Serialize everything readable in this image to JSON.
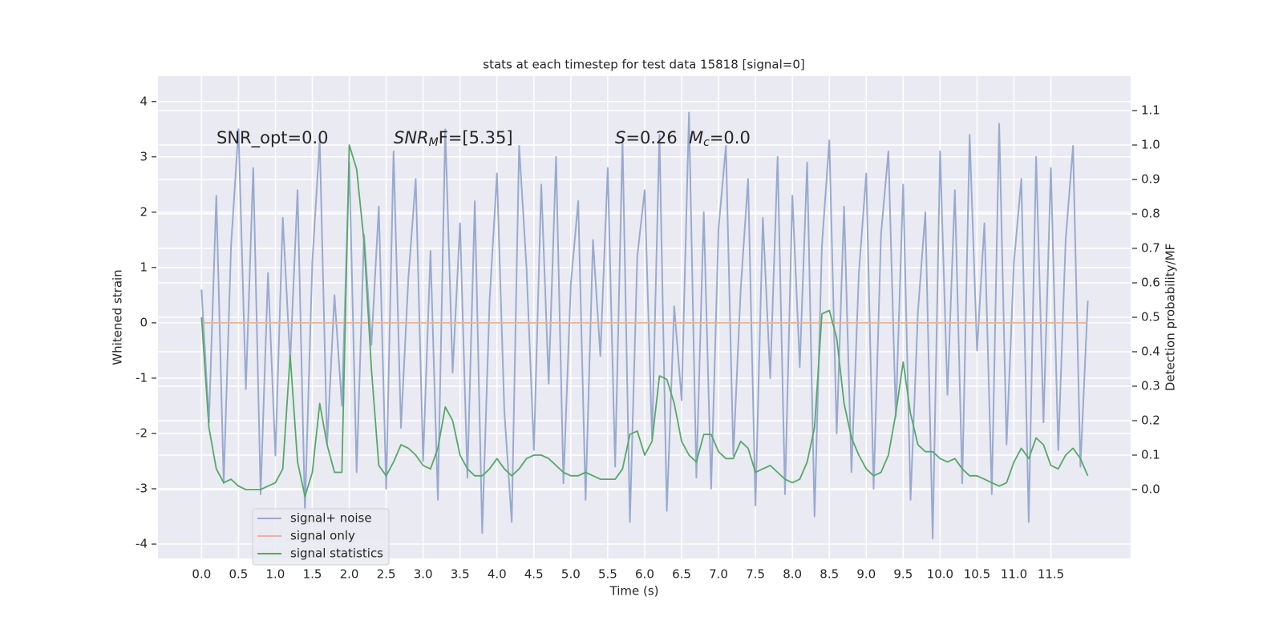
{
  "chart_data": {
    "type": "line",
    "title": "stats at each timestep for test data 15818 [signal=0]",
    "xlabel": "Time (s)",
    "ylabel": "Whitened strain",
    "y2label": "Detection probability/MF",
    "x": [
      0,
      0.1,
      0.2,
      0.3,
      0.4,
      0.5,
      0.6,
      0.7,
      0.8,
      0.9,
      1,
      1.1,
      1.2,
      1.3,
      1.4,
      1.5,
      1.6,
      1.7,
      1.8,
      1.9,
      2,
      2.1,
      2.2,
      2.3,
      2.4,
      2.5,
      2.6,
      2.7,
      2.8,
      2.9,
      3,
      3.1,
      3.2,
      3.3,
      3.4,
      3.5,
      3.6,
      3.7,
      3.8,
      3.9,
      4,
      4.1,
      4.2,
      4.3,
      4.4,
      4.5,
      4.6,
      4.7,
      4.8,
      4.9,
      5,
      5.1,
      5.2,
      5.3,
      5.4,
      5.5,
      5.6,
      5.7,
      5.8,
      5.9,
      6,
      6.1,
      6.2,
      6.3,
      6.4,
      6.5,
      6.6,
      6.7,
      6.8,
      6.9,
      7,
      7.1,
      7.2,
      7.3,
      7.4,
      7.5,
      7.6,
      7.7,
      7.8,
      7.9,
      8,
      8.1,
      8.2,
      8.3,
      8.4,
      8.5,
      8.6,
      8.7,
      8.8,
      8.9,
      9,
      9.1,
      9.2,
      9.3,
      9.4,
      9.5,
      9.6,
      9.7,
      9.8,
      9.9,
      10,
      10.1,
      10.2,
      10.3,
      10.4,
      10.5,
      10.6,
      10.7,
      10.8,
      10.9,
      11,
      11.1,
      11.2,
      11.3,
      11.4,
      11.5,
      11.6,
      11.7,
      11.8,
      11.9,
      12
    ],
    "series": [
      {
        "name": "signal+ noise",
        "color": "#99aacf",
        "values": [
          0.6,
          -1.8,
          2.3,
          -2.9,
          1.4,
          3.5,
          -1.2,
          2.8,
          -3.1,
          0.9,
          -2.4,
          1.9,
          -0.7,
          2.4,
          -3.4,
          1.1,
          3.3,
          -2.2,
          0.5,
          -1.5,
          2.9,
          -2.7,
          1.6,
          -0.4,
          2.1,
          -3.0,
          3.1,
          -1.9,
          0.8,
          2.6,
          -2.5,
          1.3,
          -3.2,
          3.5,
          -0.9,
          1.8,
          -2.8,
          2.2,
          -3.8,
          0.4,
          2.7,
          -1.6,
          -3.6,
          3.2,
          1.0,
          -2.3,
          2.5,
          -1.1,
          3.0,
          -2.9,
          0.7,
          2.2,
          -3.2,
          1.5,
          -0.6,
          2.8,
          -2.6,
          3.3,
          -3.6,
          1.2,
          2.4,
          -2.1,
          3.4,
          -3.4,
          0.3,
          -1.4,
          3.8,
          -2.8,
          2.0,
          -3.0,
          1.7,
          3.2,
          -2.4,
          0.6,
          2.6,
          -3.3,
          1.9,
          -1.0,
          3.0,
          -3.1,
          2.3,
          -0.8,
          2.9,
          -3.5,
          1.4,
          3.3,
          -2.0,
          2.1,
          -2.7,
          0.9,
          2.7,
          -3.0,
          1.6,
          3.1,
          -1.7,
          2.5,
          -3.2,
          0.2,
          2.0,
          -3.9,
          3.1,
          -1.3,
          2.4,
          -2.9,
          3.4,
          -0.5,
          1.8,
          -3.1,
          3.6,
          -2.2,
          1.1,
          2.6,
          -3.6,
          3.0,
          -1.8,
          2.8,
          -2.3,
          1.5,
          3.2,
          -2.6,
          0.4
        ]
      },
      {
        "name": "signal only",
        "color": "#e8b49a",
        "values": [
          0,
          0,
          0,
          0,
          0,
          0,
          0,
          0,
          0,
          0,
          0,
          0,
          0,
          0,
          0,
          0,
          0,
          0,
          0,
          0,
          0,
          0,
          0,
          0,
          0,
          0,
          0,
          0,
          0,
          0,
          0,
          0,
          0,
          0,
          0,
          0,
          0,
          0,
          0,
          0,
          0,
          0,
          0,
          0,
          0,
          0,
          0,
          0,
          0,
          0,
          0,
          0,
          0,
          0,
          0,
          0,
          0,
          0,
          0,
          0,
          0,
          0,
          0,
          0,
          0,
          0,
          0,
          0,
          0,
          0,
          0,
          0,
          0,
          0,
          0,
          0,
          0,
          0,
          0,
          0,
          0,
          0,
          0,
          0,
          0,
          0,
          0,
          0,
          0,
          0,
          0,
          0,
          0,
          0,
          0,
          0,
          0,
          0,
          0,
          0,
          0,
          0,
          0,
          0,
          0,
          0,
          0,
          0,
          0,
          0,
          0,
          0,
          0,
          0,
          0,
          0,
          0,
          0,
          0,
          0,
          0
        ]
      },
      {
        "name": "signal statistics",
        "color": "#55a868",
        "axis": "y2",
        "values": [
          0.5,
          0.18,
          0.06,
          0.02,
          0.03,
          0.01,
          0.0,
          0.0,
          0.0,
          0.01,
          0.02,
          0.06,
          0.39,
          0.08,
          -0.02,
          0.05,
          0.25,
          0.13,
          0.05,
          0.05,
          1.0,
          0.93,
          0.72,
          0.35,
          0.07,
          0.04,
          0.08,
          0.13,
          0.12,
          0.1,
          0.07,
          0.06,
          0.12,
          0.24,
          0.2,
          0.1,
          0.06,
          0.04,
          0.04,
          0.06,
          0.09,
          0.06,
          0.04,
          0.06,
          0.09,
          0.1,
          0.1,
          0.09,
          0.07,
          0.05,
          0.04,
          0.04,
          0.05,
          0.04,
          0.03,
          0.03,
          0.03,
          0.06,
          0.16,
          0.17,
          0.1,
          0.14,
          0.33,
          0.32,
          0.25,
          0.14,
          0.1,
          0.08,
          0.16,
          0.16,
          0.11,
          0.09,
          0.09,
          0.14,
          0.12,
          0.05,
          0.06,
          0.07,
          0.05,
          0.03,
          0.02,
          0.03,
          0.08,
          0.18,
          0.51,
          0.52,
          0.44,
          0.25,
          0.15,
          0.1,
          0.06,
          0.04,
          0.05,
          0.1,
          0.22,
          0.37,
          0.22,
          0.13,
          0.11,
          0.11,
          0.09,
          0.08,
          0.09,
          0.06,
          0.04,
          0.04,
          0.03,
          0.02,
          0.01,
          0.02,
          0.08,
          0.12,
          0.09,
          0.15,
          0.13,
          0.07,
          0.06,
          0.1,
          0.12,
          0.09,
          0.04
        ]
      }
    ],
    "xlim": [
      -0.59,
      12.58
    ],
    "xticks": [
      {
        "value": 0,
        "label": "0.0"
      },
      0.5,
      {
        "value": 1,
        "label": "1.0"
      },
      1.5,
      {
        "value": 2,
        "label": "2.0"
      },
      2.5,
      {
        "value": 3,
        "label": "3.0"
      },
      3.5,
      {
        "value": 4,
        "label": "4.0"
      },
      4.5,
      {
        "value": 5,
        "label": "5.0"
      },
      5.5,
      {
        "value": 6,
        "label": "6.0"
      },
      6.5,
      {
        "value": 7,
        "label": "7.0"
      },
      7.5,
      {
        "value": 8,
        "label": "8.0"
      },
      8.5,
      {
        "value": 9,
        "label": "9.0"
      },
      9.5,
      {
        "value": 10,
        "label": "10.0"
      },
      10.5,
      {
        "value": 11,
        "label": "11.0"
      },
      11.5
    ],
    "ylim": [
      -4.26,
      4.46
    ],
    "yticks": [
      -4,
      -3,
      -2,
      -1,
      0,
      1,
      2,
      3,
      4
    ],
    "y2lim": [
      -0.2,
      1.2
    ],
    "y2ticks": [
      {
        "value": 0,
        "label": "0.0"
      },
      0.1,
      0.2,
      0.3,
      0.4,
      0.5,
      0.6,
      0.7,
      0.8,
      0.9,
      {
        "value": 1,
        "label": "1.0"
      },
      1.1
    ],
    "grid": true,
    "legend": "lower left",
    "annotations": [
      {
        "text": "SNR_opt=0.0"
      },
      {
        "main": "SNR",
        "sub": "M",
        "rest": "F=[5.35]"
      },
      {
        "main": "S",
        "rest": "=0.26"
      },
      {
        "main": "M",
        "sub": "c",
        "rest": "=0.0"
      }
    ]
  }
}
